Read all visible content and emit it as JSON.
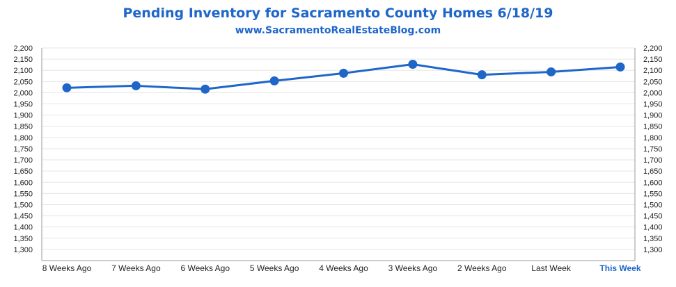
{
  "header": {
    "title": "Pending Inventory for Sacramento County Homes 6/18/19",
    "subtitle": "www.SacramentoRealEstateBlog.com"
  },
  "colors": {
    "accent": "#1f66c9",
    "line": "#1f66c9",
    "grid": "#e6e6e6",
    "axis": "#999999"
  },
  "chart_data": {
    "type": "line",
    "title": "Pending Inventory for Sacramento County Homes 6/18/19",
    "subtitle": "www.SacramentoRealEstateBlog.com",
    "xlabel": "",
    "ylabel": "",
    "categories": [
      "8 Weeks Ago",
      "7 Weeks Ago",
      "6 Weeks Ago",
      "5 Weeks Ago",
      "4 Weeks Ago",
      "3 Weeks Ago",
      "2 Weeks Ago",
      "Last Week",
      "This Week"
    ],
    "highlight_category": "This Week",
    "series": [
      {
        "values": [
          2022,
          2031,
          2016,
          2053,
          2087,
          2127,
          2080,
          2093,
          2115
        ]
      }
    ],
    "ylim": [
      1250,
      2200
    ],
    "yticks": [
      1300,
      1350,
      1400,
      1450,
      1500,
      1550,
      1600,
      1650,
      1700,
      1750,
      1800,
      1850,
      1900,
      1950,
      2000,
      2050,
      2100,
      2150,
      2200
    ],
    "ytick_labels": [
      "1,300",
      "1,350",
      "1,400",
      "1,450",
      "1,500",
      "1,550",
      "1,600",
      "1,650",
      "1,700",
      "1,750",
      "1,800",
      "1,850",
      "1,900",
      "1,950",
      "2,000",
      "2,050",
      "2,100",
      "2,150",
      "2,200"
    ],
    "secondary_y_axis": true,
    "grid": true,
    "legend": "none"
  }
}
